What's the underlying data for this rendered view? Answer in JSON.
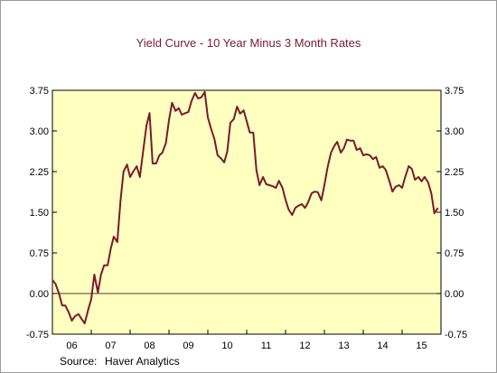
{
  "chart_data": {
    "type": "line",
    "title": "Yield Curve - 10 Year Minus 3 Month Rates",
    "xlabel": "",
    "ylabel": "",
    "source_label": "Source:",
    "source_value": "Haver Analytics",
    "x_ticks": [
      "06",
      "07",
      "08",
      "09",
      "10",
      "11",
      "12",
      "13",
      "14",
      "15"
    ],
    "y_ticks_left": [
      "3.75",
      "3.00",
      "2.25",
      "1.50",
      "0.75",
      "0.00",
      "-0.75"
    ],
    "y_ticks_right": [
      "3.75",
      "3.00",
      "2.25",
      "1.50",
      "0.75",
      "0.00",
      "-0.75"
    ],
    "xlim": [
      2006.0,
      2016.0
    ],
    "ylim": [
      -0.75,
      3.75
    ],
    "grid": false,
    "zero_line": true,
    "line_color": "#7a1a2e",
    "plot_background": "#ffffc0",
    "series": [
      {
        "x": [
          2006.0,
          2006.08,
          2006.17,
          2006.25,
          2006.33,
          2006.42,
          2006.5,
          2006.58,
          2006.67,
          2006.75,
          2006.83,
          2006.92,
          2007.0,
          2007.08,
          2007.17,
          2007.25,
          2007.33,
          2007.42,
          2007.5,
          2007.58,
          2007.67,
          2007.75,
          2007.83,
          2007.92,
          2008.0,
          2008.08,
          2008.17,
          2008.25,
          2008.33,
          2008.42,
          2008.5,
          2008.58,
          2008.67,
          2008.75,
          2008.83,
          2008.92,
          2009.0,
          2009.08,
          2009.17,
          2009.25,
          2009.33,
          2009.42,
          2009.5,
          2009.58,
          2009.67,
          2009.75,
          2009.83,
          2009.92,
          2010.0,
          2010.08,
          2010.17,
          2010.25,
          2010.33,
          2010.42,
          2010.5,
          2010.58,
          2010.67,
          2010.75,
          2010.83,
          2010.92,
          2011.0,
          2011.08,
          2011.17,
          2011.25,
          2011.33,
          2011.42,
          2011.5,
          2011.58,
          2011.67,
          2011.75,
          2011.83,
          2011.92,
          2012.0,
          2012.08,
          2012.17,
          2012.25,
          2012.33,
          2012.42,
          2012.5,
          2012.58,
          2012.67,
          2012.75,
          2012.83,
          2012.92,
          2013.0,
          2013.08,
          2013.17,
          2013.25,
          2013.33,
          2013.42,
          2013.5,
          2013.58,
          2013.67,
          2013.75,
          2013.83,
          2013.92,
          2014.0,
          2014.08,
          2014.17,
          2014.25,
          2014.33,
          2014.42,
          2014.5,
          2014.58,
          2014.67,
          2014.75,
          2014.83,
          2014.92,
          2015.0,
          2015.08,
          2015.17,
          2015.25,
          2015.33,
          2015.42,
          2015.5,
          2015.58,
          2015.67,
          2015.75,
          2015.83,
          2015.92
        ],
        "y": [
          0.25,
          0.18,
          0.0,
          -0.22,
          -0.22,
          -0.35,
          -0.5,
          -0.42,
          -0.38,
          -0.47,
          -0.55,
          -0.3,
          -0.1,
          0.35,
          0.02,
          0.35,
          0.52,
          0.52,
          0.82,
          1.05,
          0.95,
          1.7,
          2.25,
          2.38,
          2.15,
          2.25,
          2.35,
          2.15,
          2.6,
          3.1,
          3.33,
          2.4,
          2.4,
          2.55,
          2.6,
          2.78,
          3.2,
          3.52,
          3.37,
          3.42,
          3.3,
          3.33,
          3.35,
          3.55,
          3.7,
          3.6,
          3.62,
          3.72,
          3.25,
          3.05,
          2.85,
          2.55,
          2.5,
          2.42,
          2.62,
          3.15,
          3.22,
          3.45,
          3.32,
          3.38,
          3.18,
          2.97,
          2.97,
          2.27,
          2.0,
          2.15,
          2.02,
          2.0,
          1.98,
          1.95,
          2.08,
          1.95,
          1.73,
          1.55,
          1.45,
          1.58,
          1.62,
          1.65,
          1.58,
          1.68,
          1.85,
          1.88,
          1.87,
          1.72,
          2.0,
          2.32,
          2.6,
          2.72,
          2.8,
          2.6,
          2.68,
          2.84,
          2.82,
          2.82,
          2.65,
          2.68,
          2.55,
          2.57,
          2.55,
          2.48,
          2.52,
          2.32,
          2.35,
          2.28,
          2.08,
          1.88,
          1.97,
          2.0,
          1.95,
          2.15,
          2.35,
          2.3,
          2.1,
          2.15,
          2.07,
          2.15,
          2.05,
          1.85,
          1.48,
          1.58
        ]
      }
    ]
  }
}
